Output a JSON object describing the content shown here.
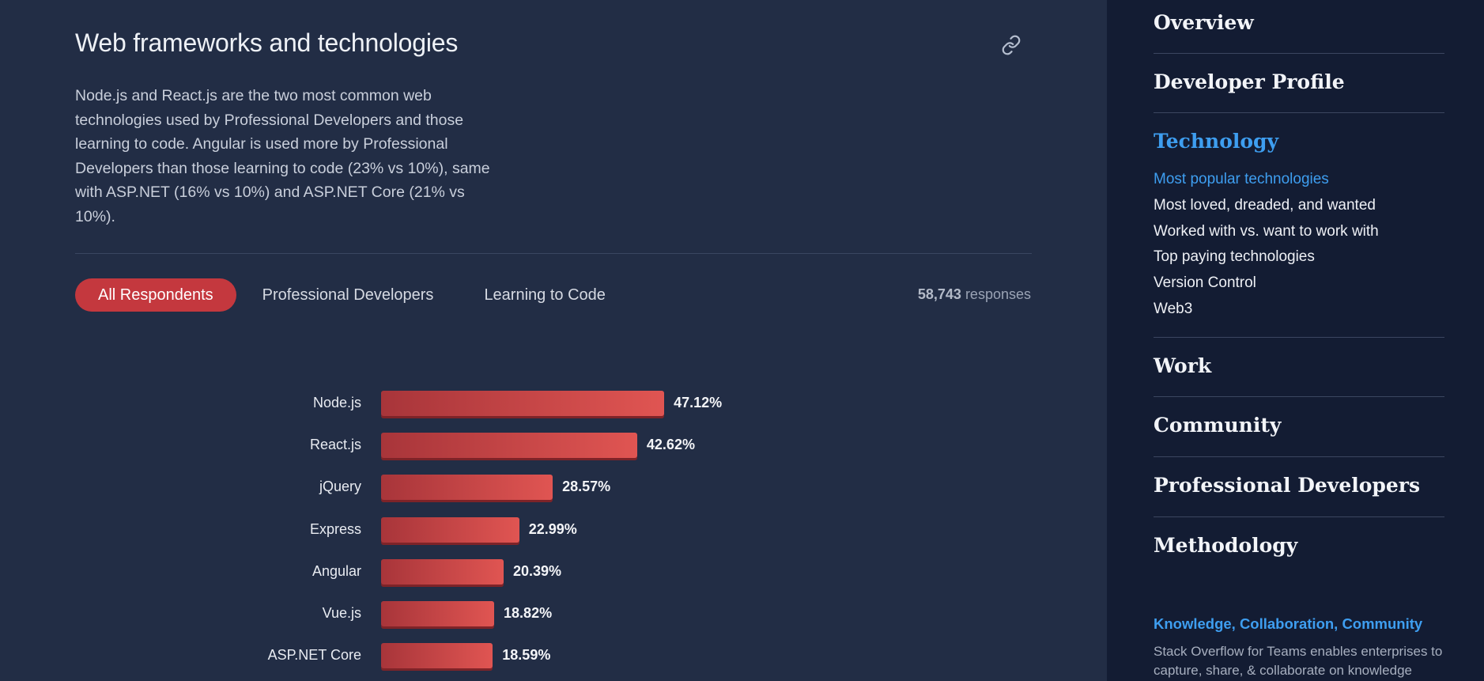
{
  "section": {
    "title": "Web frameworks and technologies",
    "description": "Node.js and React.js are the two most common web technologies used by Professional Developers and those learning to code. Angular is used more by Professional Developers than those learning to code (23% vs 10%), same with ASP.NET (16% vs 10%) and ASP.NET Core (21% vs 10%).",
    "link_icon": "link-icon"
  },
  "tabs": [
    {
      "label": "All Respondents",
      "active": true
    },
    {
      "label": "Professional Developers",
      "active": false
    },
    {
      "label": "Learning to Code",
      "active": false
    }
  ],
  "responses": {
    "count": "58,743",
    "label": "responses"
  },
  "chart_data": {
    "type": "bar",
    "orientation": "horizontal",
    "categories": [
      "Node.js",
      "React.js",
      "jQuery",
      "Express",
      "Angular",
      "Vue.js",
      "ASP.NET Core"
    ],
    "values": [
      47.12,
      42.62,
      28.57,
      22.99,
      20.39,
      18.82,
      18.59
    ],
    "value_labels": [
      "47.12%",
      "42.62%",
      "28.57%",
      "22.99%",
      "20.39%",
      "18.82%",
      "18.59%"
    ],
    "bar_color": "#d24a4a"
  },
  "sidebar": {
    "items": [
      {
        "label": "Overview"
      },
      {
        "label": "Developer Profile"
      },
      {
        "label": "Technology",
        "active": true,
        "subitems": [
          {
            "label": "Most popular technologies",
            "active": true
          },
          {
            "label": "Most loved, dreaded, and wanted"
          },
          {
            "label": "Worked with vs. want to work with"
          },
          {
            "label": "Top paying technologies"
          },
          {
            "label": "Version Control"
          },
          {
            "label": "Web3"
          }
        ]
      },
      {
        "label": "Work"
      },
      {
        "label": "Community"
      },
      {
        "label": "Professional Developers"
      },
      {
        "label": "Methodology"
      }
    ],
    "promo": {
      "title": "Knowledge, Collaboration, Community",
      "text": "Stack Overflow for Teams enables enterprises to capture, share, & collaborate on knowledge"
    }
  },
  "colors": {
    "accent": "#c4383e",
    "link": "#3e9ef0",
    "background": "#222d45",
    "sidebar_bg": "#131c33"
  }
}
